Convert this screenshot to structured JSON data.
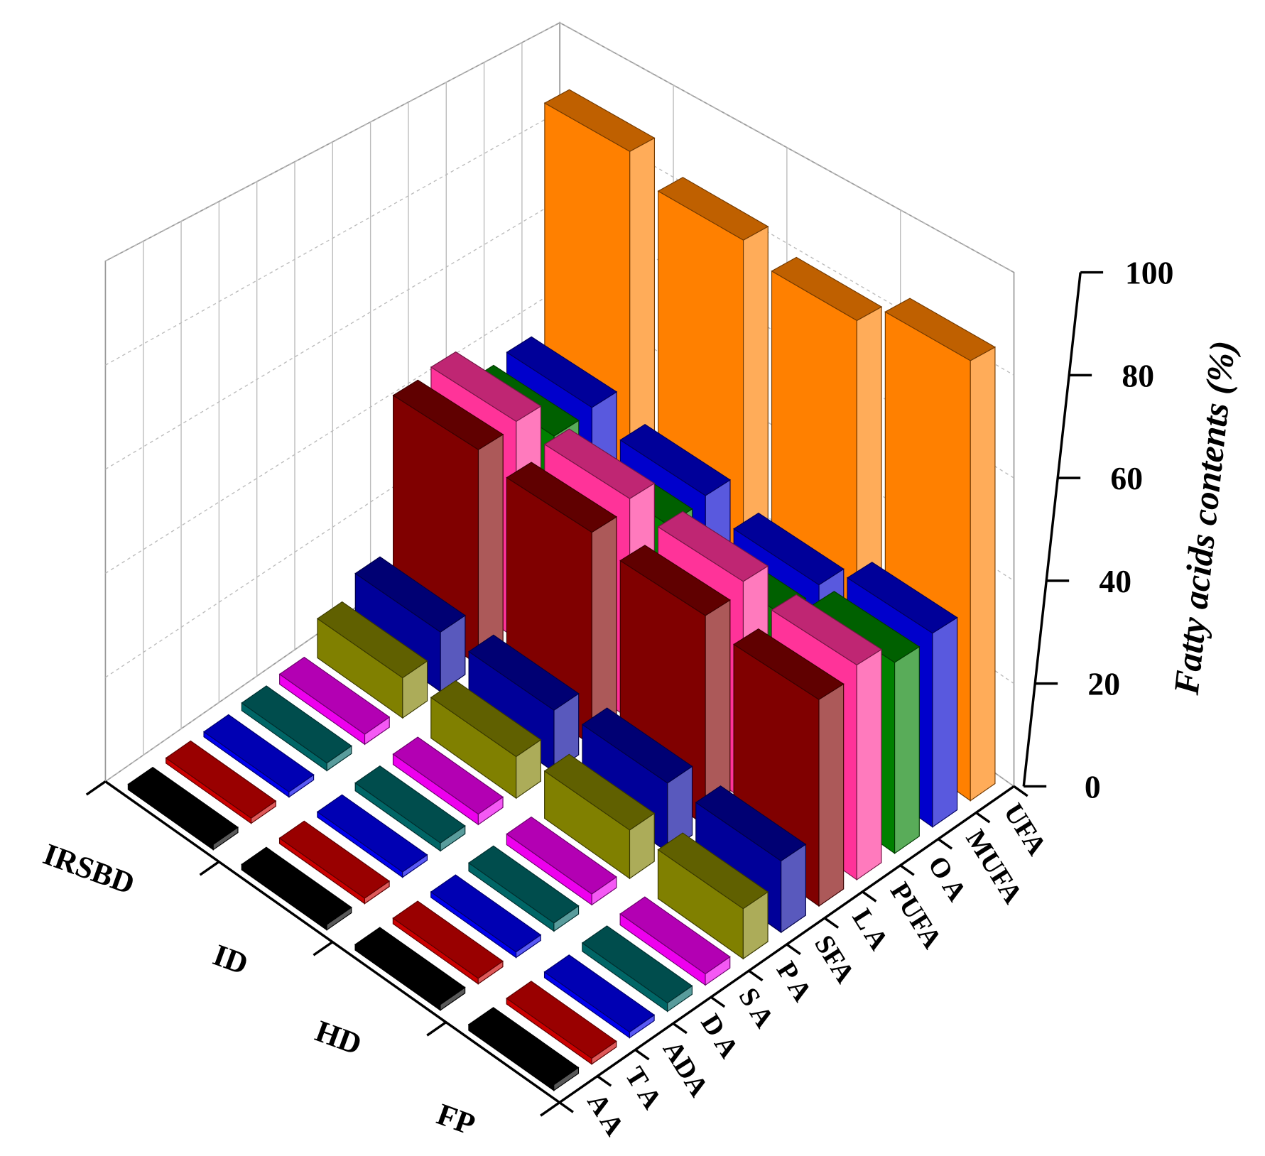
{
  "chart_data": {
    "type": "bar3d",
    "categories": [
      "IRSBD",
      "ID",
      "HD",
      "FP"
    ],
    "series": [
      {
        "name": "A A",
        "color": "#000000",
        "values": [
          1,
          1,
          1,
          1
        ]
      },
      {
        "name": "T A",
        "color": "#cc0000",
        "values": [
          1,
          1,
          1,
          1
        ]
      },
      {
        "name": "ADA",
        "color": "#0000ee",
        "values": [
          1,
          1,
          1,
          1
        ]
      },
      {
        "name": "D A",
        "color": "#006666",
        "values": [
          1.5,
          1.5,
          1.5,
          1.5
        ]
      },
      {
        "name": "S A",
        "color": "#ee00ee",
        "values": [
          2,
          2,
          2,
          2
        ]
      },
      {
        "name": "P A",
        "color": "#808000",
        "values": [
          8,
          8,
          9,
          9
        ]
      },
      {
        "name": "SFA",
        "color": "#000099",
        "values": [
          12,
          12,
          13,
          13
        ]
      },
      {
        "name": "L A",
        "color": "#800000",
        "values": [
          44,
          42,
          40,
          38
        ]
      },
      {
        "name": "PUFA",
        "color": "#ff3399",
        "values": [
          45,
          44,
          42,
          40
        ]
      },
      {
        "name": "O A",
        "color": "#008000",
        "values": [
          37,
          34,
          31,
          36
        ]
      },
      {
        "name": "MUFA",
        "color": "#0000cc",
        "values": [
          38,
          35,
          32,
          37
        ]
      },
      {
        "name": "UFA",
        "color": "#ff8000",
        "values": [
          88,
          83,
          80,
          85
        ]
      }
    ],
    "zlim": [
      0,
      100
    ],
    "zticks": [
      0,
      20,
      40,
      60,
      80,
      100
    ],
    "zlabel": "Fatty acids contents (%)",
    "grid": true
  }
}
